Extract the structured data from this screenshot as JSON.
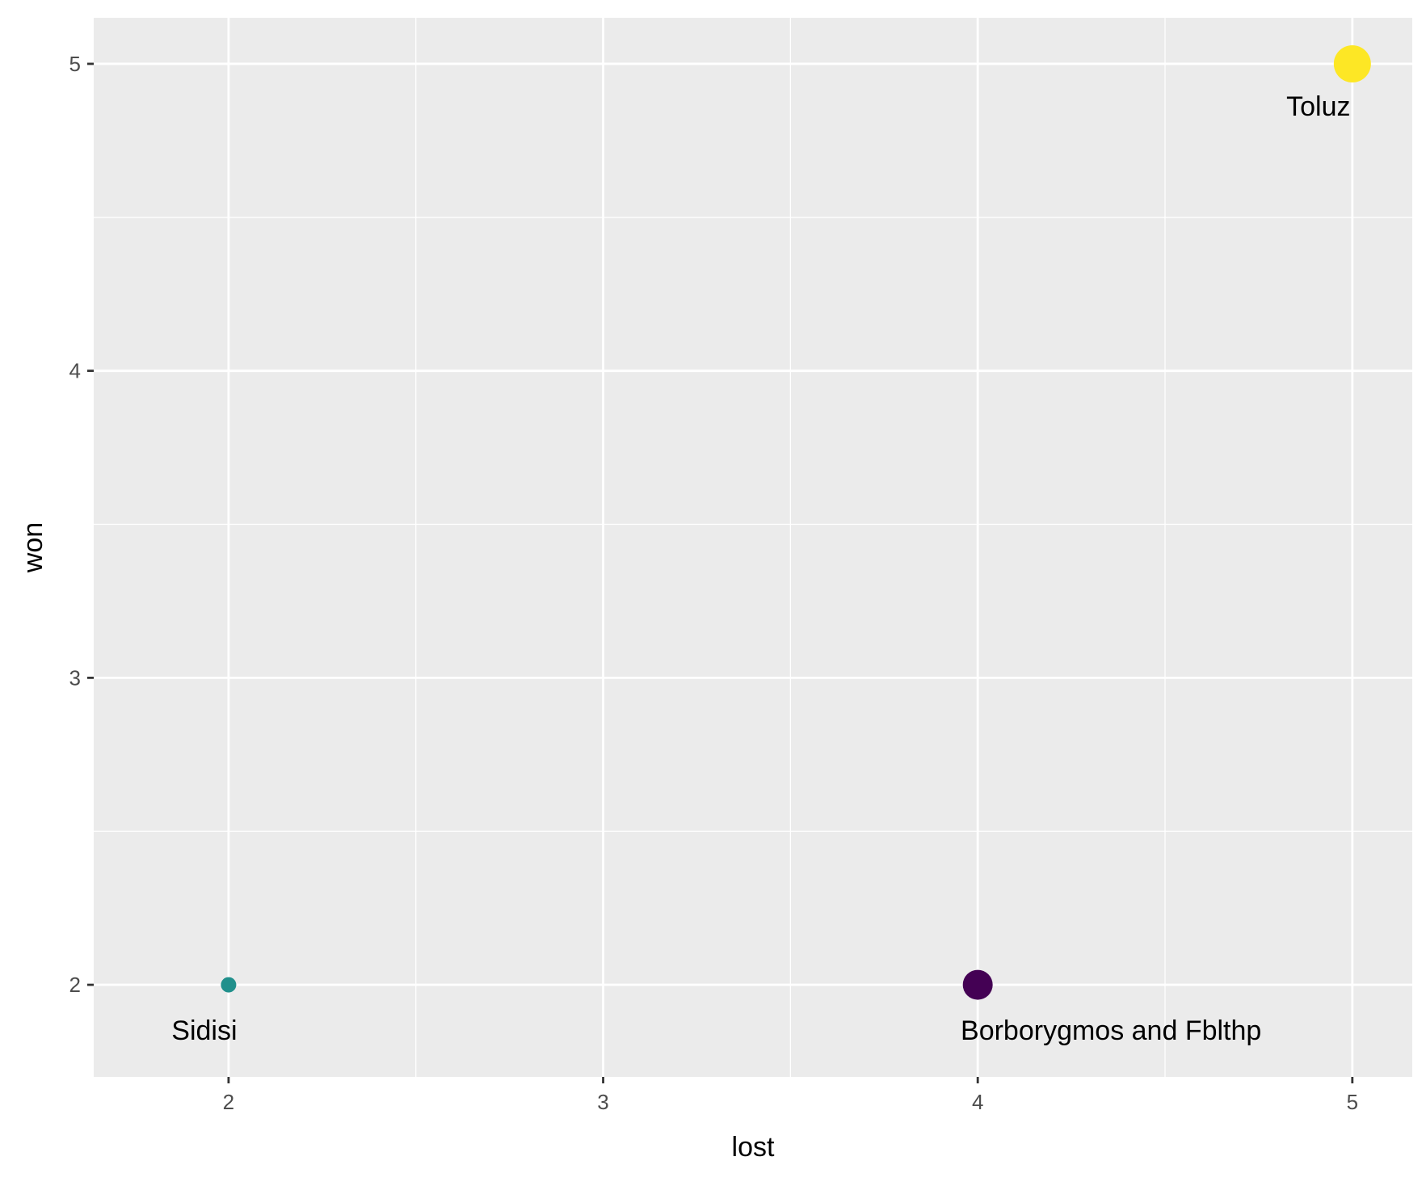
{
  "chart_data": {
    "type": "scatter",
    "title": "",
    "xlabel": "lost",
    "ylabel": "won",
    "xlim": [
      1.64,
      5.16
    ],
    "ylim": [
      1.7,
      5.15
    ],
    "grid": true,
    "x_ticks": [
      2,
      3,
      4,
      5
    ],
    "y_ticks": [
      2,
      3,
      4,
      5
    ],
    "points": [
      {
        "label": "Sidisi",
        "x": 2,
        "y": 2,
        "size": 1,
        "color": "#21908c"
      },
      {
        "label": "Borborygmos and Fblthp",
        "x": 4,
        "y": 2,
        "size": 3,
        "color": "#440154"
      },
      {
        "label": "Toluz",
        "x": 5,
        "y": 5,
        "size": 4,
        "color": "#fde725"
      }
    ],
    "colors": {
      "panel_background": "#ebebeb",
      "grid": "#ffffff",
      "tick": "#333333"
    }
  }
}
